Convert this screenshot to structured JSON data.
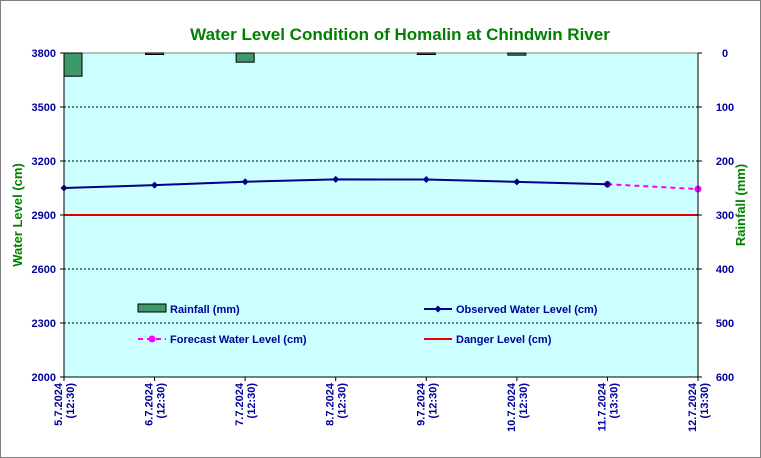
{
  "chart_data": {
    "type": "line",
    "title": "Water Level Condition of Homalin at Chindwin River",
    "ylabel": "Water Level (cm)",
    "y2label": "Rainfall (mm)",
    "categories": [
      [
        "5.7.2024",
        "(12:30)"
      ],
      [
        "6.7.2024",
        "(12:30)"
      ],
      [
        "7.7.2024",
        "(12:30)"
      ],
      [
        "8.7.2024",
        "(12:30)"
      ],
      [
        "9.7.2024",
        "(12:30)"
      ],
      [
        "10.7.2024",
        "(12:30)"
      ],
      [
        "11.7.2024",
        "(13:30)"
      ],
      [
        "12.7.2024",
        "(13:30)"
      ]
    ],
    "ylim": [
      2000,
      3800
    ],
    "yticks": [
      2000,
      2300,
      2600,
      2900,
      3200,
      3500,
      3800
    ],
    "y2lim": [
      0,
      600
    ],
    "y2reversed": true,
    "y2ticks": [
      0,
      100,
      200,
      300,
      400,
      500,
      600
    ],
    "grid": true,
    "series": [
      {
        "name": "Rainfall (mm)",
        "type": "bar",
        "axis": "right",
        "color": "#3c9a6a",
        "values": [
          43,
          1,
          17,
          0,
          1,
          4,
          0,
          0
        ]
      },
      {
        "name": "Observed Water Level (cm)",
        "type": "line",
        "axis": "left",
        "color": "#000080",
        "values": [
          3050,
          3066,
          3085,
          3098,
          3097,
          3084,
          3071,
          null
        ]
      },
      {
        "name": "Forecast Water Level (cm)",
        "type": "line",
        "axis": "left",
        "color": "#ff00ff",
        "dashed": true,
        "values": [
          null,
          null,
          null,
          null,
          null,
          null,
          3071,
          3044
        ]
      },
      {
        "name": "Danger Level (cm)",
        "type": "line",
        "axis": "left",
        "color": "#e00000",
        "constant": 2900
      }
    ]
  }
}
